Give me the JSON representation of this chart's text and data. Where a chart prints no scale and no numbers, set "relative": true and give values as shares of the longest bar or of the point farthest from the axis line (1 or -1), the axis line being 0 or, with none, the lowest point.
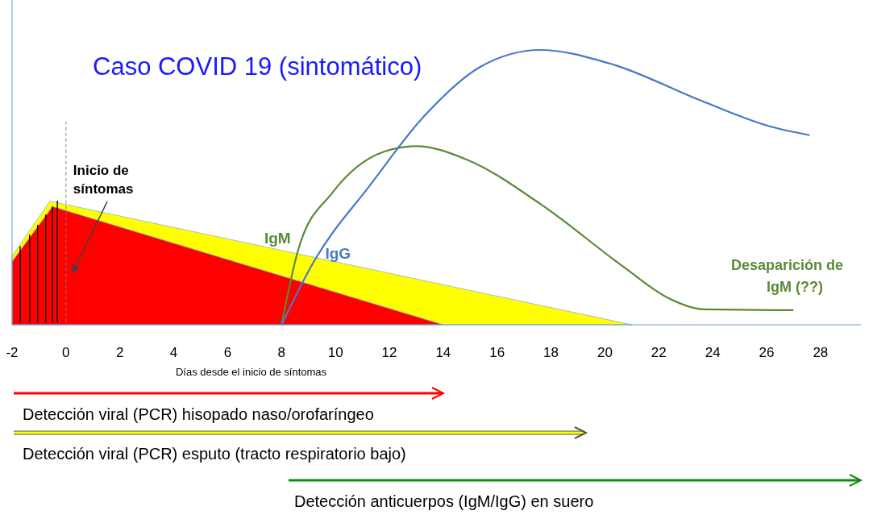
{
  "chart_data": {
    "type": "line",
    "title": "Caso COVID 19 (sintomático)",
    "xlabel": "Días desde el inicio de síntomas",
    "relative": true,
    "xlim": [
      -2,
      29.5
    ],
    "xticks": [
      -2,
      0,
      2,
      4,
      6,
      8,
      10,
      12,
      14,
      16,
      18,
      20,
      22,
      24,
      26,
      28
    ],
    "series": [
      {
        "type": "area",
        "color": "#ffff00",
        "x": [
          -2,
          -0.6,
          21
        ],
        "values": [
          0.25,
          0.45,
          0
        ]
      },
      {
        "type": "area",
        "color": "#ff0000",
        "x": [
          -2,
          -0.5,
          14
        ],
        "values": [
          0.23,
          0.43,
          0
        ]
      },
      {
        "name": "IgM",
        "color": "#5b8a36",
        "x": [
          8,
          8.64,
          9.88,
          11.8,
          13,
          14.9,
          17.6,
          20.7,
          22.3,
          23.7,
          27
        ],
        "values": [
          0,
          0.28,
          0.48,
          0.63,
          0.65,
          0.6,
          0.44,
          0.21,
          0.1,
          0.056,
          0.053
        ]
      },
      {
        "name": "IgG",
        "color": "#4a78c8",
        "x": [
          8,
          9.2,
          11.3,
          13.3,
          15.4,
          17.6,
          20.2,
          23.7,
          26.2,
          27.6
        ],
        "values": [
          0,
          0.23,
          0.51,
          0.76,
          0.94,
          1,
          0.95,
          0.81,
          0.72,
          0.69
        ]
      }
    ],
    "ref_lines": [
      {
        "axis": "x",
        "value": 0,
        "label": "Inicio de síntomas",
        "line_style": "dashed",
        "color": "#808080"
      }
    ],
    "annotations": [
      {
        "text": "Desaparición de IgM (??)",
        "x": 26,
        "y": 0.053
      },
      "Detección viral (PCR) hisopado naso/orofaríngeo",
      "Detección viral (PCR) esputo  (tracto respiratorio bajo)",
      "Detección anticuerpos (IgM/IgG) en suero"
    ],
    "legend": false
  }
}
